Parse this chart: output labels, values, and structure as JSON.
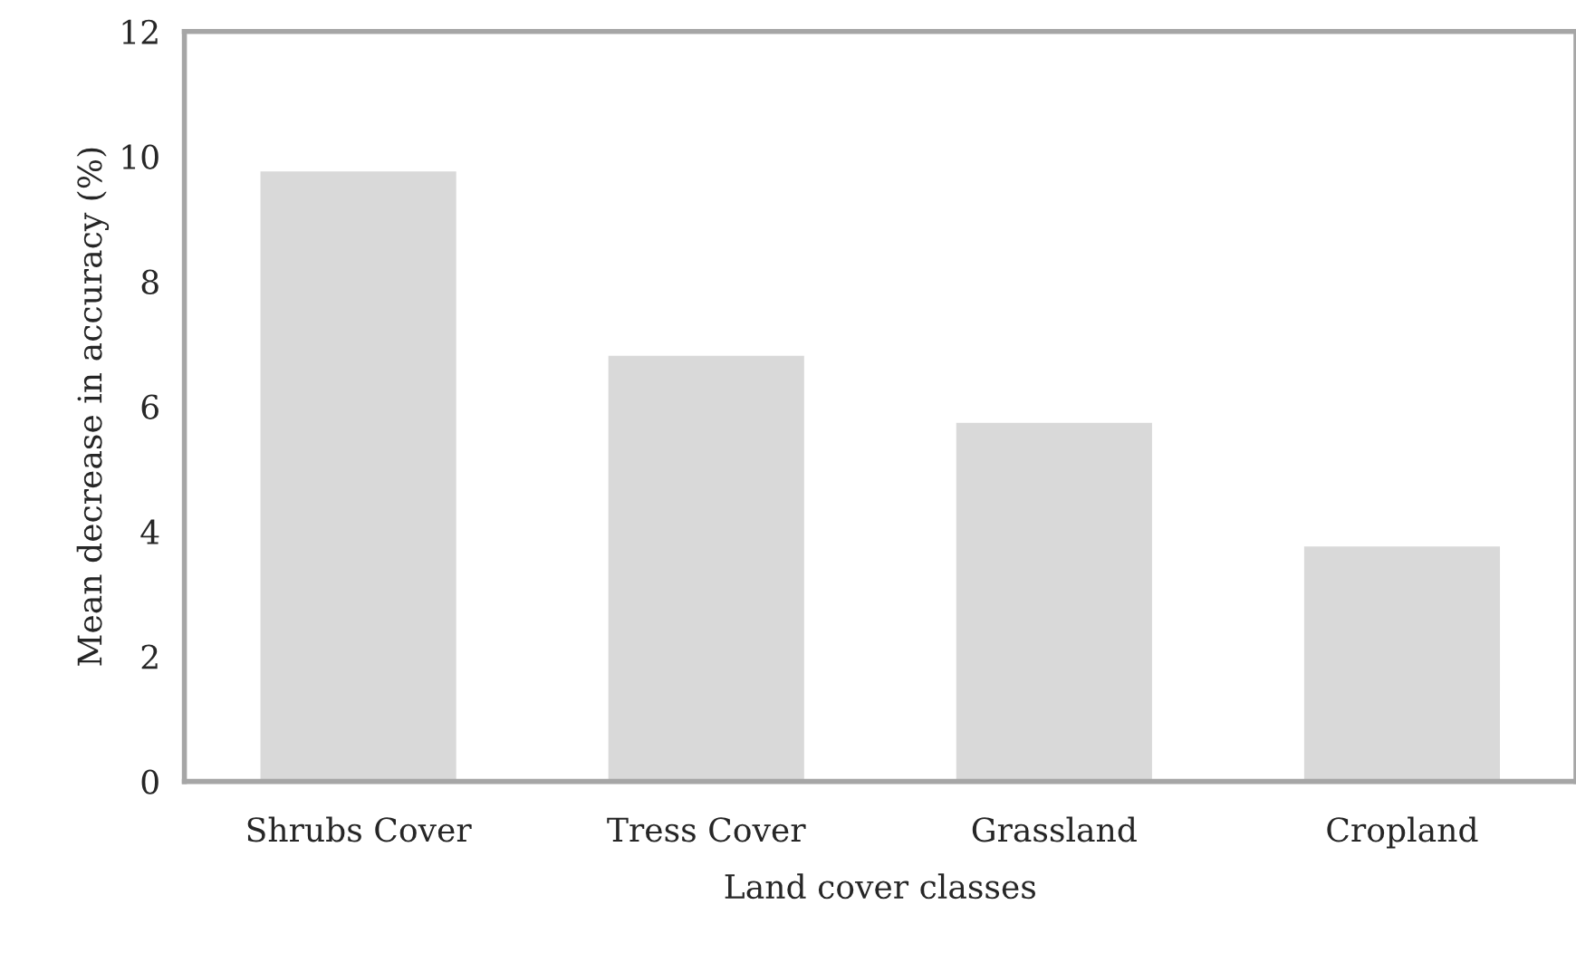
{
  "chart_data": {
    "type": "bar",
    "xlabel": "Land cover classes",
    "ylabel": "Mean decrease in accuracy (%)",
    "categories": [
      "Shrubs Cover",
      "Tress Cover",
      "Grassland",
      "Cropland"
    ],
    "values": [
      9.78,
      6.83,
      5.76,
      3.78
    ],
    "color": "#d9d9d9",
    "ylim": [
      0,
      12
    ],
    "yticks": [
      0,
      2,
      4,
      6,
      8,
      10,
      12
    ],
    "grid": false,
    "legend": false
  }
}
